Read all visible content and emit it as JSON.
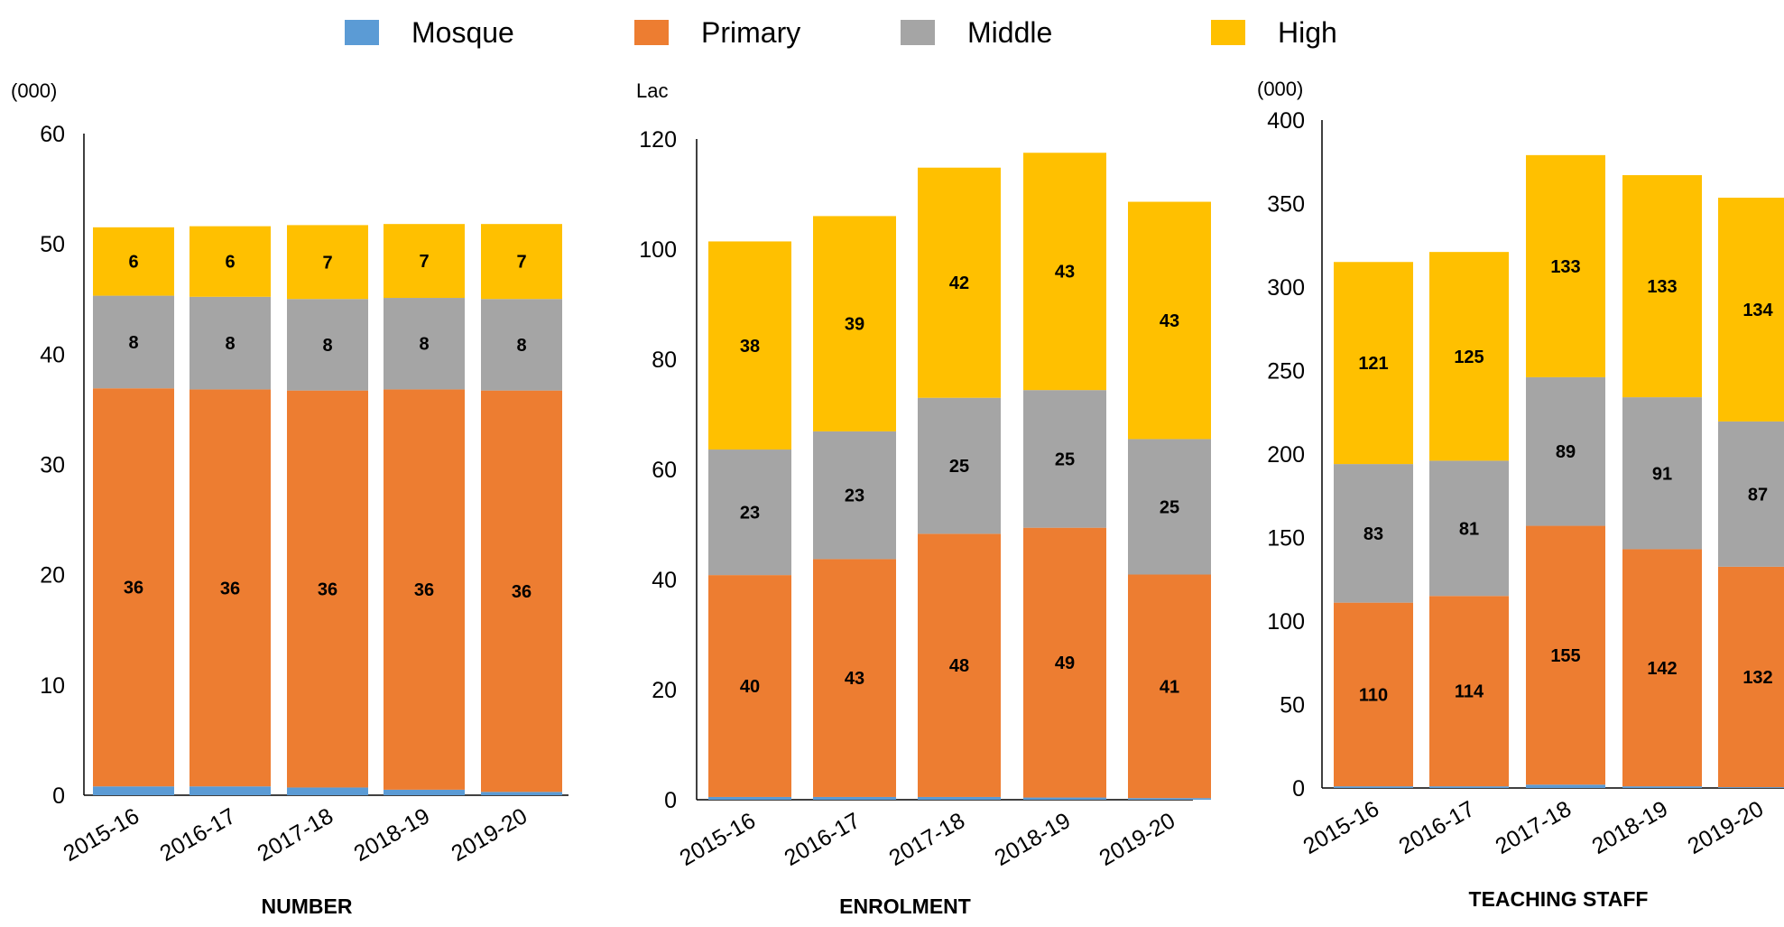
{
  "legend": [
    {
      "name": "Mosque",
      "color": "#5B9BD5"
    },
    {
      "name": "Primary",
      "color": "#ED7D31"
    },
    {
      "name": "Middle",
      "color": "#A5A5A5"
    },
    {
      "name": "High",
      "color": "#FFC000"
    }
  ],
  "chart_data": [
    {
      "type": "bar",
      "stacked": true,
      "title": "NUMBER",
      "ylabel": "(000)",
      "categories": [
        "2015-16",
        "2016-17",
        "2017-18",
        "2018-19",
        "2019-20"
      ],
      "ylim": [
        0,
        60
      ],
      "yticks": [
        0,
        10,
        20,
        30,
        40,
        50,
        60
      ],
      "series": [
        {
          "name": "Mosque",
          "values": [
            0.8,
            0.8,
            0.7,
            0.5,
            0.3
          ],
          "labels": [
            "",
            "",
            "",
            "",
            ""
          ]
        },
        {
          "name": "Primary",
          "values": [
            36.1,
            36.0,
            36.0,
            36.3,
            36.4
          ],
          "labels": [
            "36",
            "36",
            "36",
            "36",
            "36"
          ]
        },
        {
          "name": "Middle",
          "values": [
            8.4,
            8.4,
            8.3,
            8.3,
            8.3
          ],
          "labels": [
            "8",
            "8",
            "8",
            "8",
            "8"
          ]
        },
        {
          "name": "High",
          "values": [
            6.2,
            6.4,
            6.7,
            6.7,
            6.8
          ],
          "labels": [
            "6",
            "6",
            "7",
            "7",
            "7"
          ]
        }
      ]
    },
    {
      "type": "bar",
      "stacked": true,
      "title": "ENROLMENT",
      "ylabel": "Lac",
      "categories": [
        "2015-16",
        "2016-17",
        "2017-18",
        "2018-19",
        "2019-20"
      ],
      "ylim": [
        0,
        120
      ],
      "yticks": [
        0,
        20,
        40,
        60,
        80,
        100,
        120
      ],
      "series": [
        {
          "name": "Mosque",
          "values": [
            0.5,
            0.5,
            0.5,
            0.4,
            0.3
          ],
          "labels": [
            "",
            "",
            "",
            "",
            ""
          ]
        },
        {
          "name": "Primary",
          "values": [
            40.3,
            43.2,
            47.8,
            49.0,
            40.6
          ],
          "labels": [
            "40",
            "43",
            "48",
            "49",
            "41"
          ]
        },
        {
          "name": "Middle",
          "values": [
            22.8,
            23.2,
            24.7,
            25.0,
            24.6
          ],
          "labels": [
            "23",
            "23",
            "25",
            "25",
            "25"
          ]
        },
        {
          "name": "High",
          "values": [
            37.8,
            39.1,
            41.8,
            43.1,
            43.1
          ],
          "labels": [
            "38",
            "39",
            "42",
            "43",
            "43"
          ]
        }
      ]
    },
    {
      "type": "bar",
      "stacked": true,
      "title": "TEACHING STAFF",
      "ylabel": "(000)",
      "categories": [
        "2015-16",
        "2016-17",
        "2017-18",
        "2018-19",
        "2019-20"
      ],
      "ylim": [
        0,
        400
      ],
      "yticks": [
        0,
        50,
        100,
        150,
        200,
        250,
        300,
        350,
        400
      ],
      "series": [
        {
          "name": "Mosque",
          "values": [
            1.0,
            1.0,
            2.0,
            1.0,
            0.5
          ],
          "labels": [
            "",
            "",
            "",
            "",
            ""
          ]
        },
        {
          "name": "Primary",
          "values": [
            110,
            114,
            155,
            142,
            132
          ],
          "labels": [
            "110",
            "114",
            "155",
            "142",
            "132"
          ]
        },
        {
          "name": "Middle",
          "values": [
            83,
            81,
            89,
            91,
            87
          ],
          "labels": [
            "83",
            "81",
            "89",
            "91",
            "87"
          ]
        },
        {
          "name": "High",
          "values": [
            121,
            125,
            133,
            133,
            134
          ],
          "labels": [
            "121",
            "125",
            "133",
            "133",
            "134"
          ]
        }
      ]
    }
  ]
}
